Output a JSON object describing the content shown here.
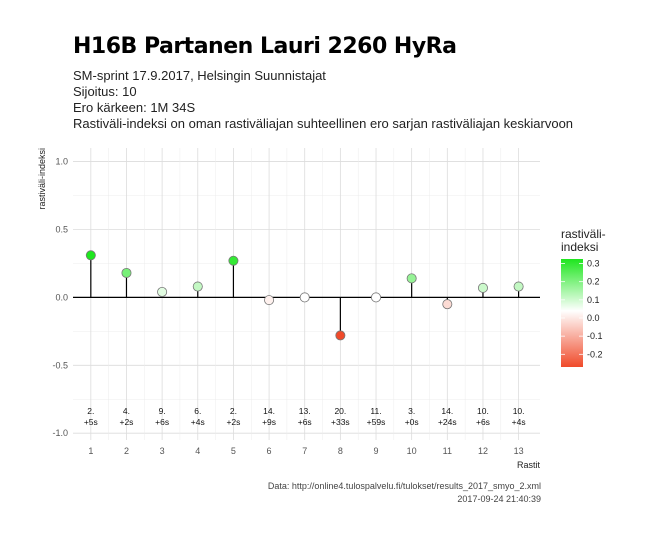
{
  "header": {
    "title": "H16B Partanen Lauri 2260 HyRa",
    "subtitle_lines": [
      "SM-sprint 17.9.2017, Helsingin Suunnistajat",
      "Sijoitus: 10",
      "Ero kärkeen: 1M 34S",
      "Rastiväli-indeksi on oman rastiväliajan suhteellinen ero sarjan rastiväliajan keskiarvoon"
    ]
  },
  "caption": {
    "source": "Data: http://online4.tulospalvelu.fi/tulokset/results_2017_smyo_2.xml",
    "timestamp": "2017-09-24 21:40:39"
  },
  "chart_data": {
    "type": "scatter",
    "style": "lollipop",
    "x": [
      1,
      2,
      3,
      4,
      5,
      6,
      7,
      8,
      9,
      10,
      11,
      12,
      13
    ],
    "values": [
      0.31,
      0.18,
      0.04,
      0.08,
      0.27,
      -0.02,
      0.0,
      -0.28,
      0.0,
      0.14,
      -0.05,
      0.07,
      0.08
    ],
    "point_labels": [
      [
        "2.",
        "+5s"
      ],
      [
        "4.",
        "+2s"
      ],
      [
        "9.",
        "+6s"
      ],
      [
        "6.",
        "+4s"
      ],
      [
        "2.",
        "+2s"
      ],
      [
        "14.",
        "+9s"
      ],
      [
        "13.",
        "+6s"
      ],
      [
        "20.",
        "+33s"
      ],
      [
        "11.",
        "+59s"
      ],
      [
        "3.",
        "+0s"
      ],
      [
        "14.",
        "+24s"
      ],
      [
        "10.",
        "+6s"
      ],
      [
        "10.",
        "+4s"
      ]
    ],
    "xlabel": "Rastit",
    "ylabel": "rastiväli-indeksi",
    "xlim": [
      0.5,
      13.6
    ],
    "ylim": [
      -1.05,
      1.1
    ],
    "y_ticks": [
      "1.0",
      "0.5",
      "0.0",
      "-0.5",
      "-1.0"
    ],
    "y_tick_values": [
      1.0,
      0.5,
      0.0,
      -0.5,
      -1.0
    ],
    "grid": true,
    "legend": {
      "title": "rastiväli-\nindeksi",
      "position": "right",
      "ticks": [
        "0.3",
        "0.2",
        "0.1",
        "0.0",
        "-0.1",
        "-0.2"
      ],
      "tick_values": [
        0.3,
        0.2,
        0.1,
        0.0,
        -0.1,
        -0.2
      ],
      "colors": {
        "high": "#1ee61e",
        "mid": "#ffffff",
        "low": "#f04a2a"
      }
    }
  }
}
